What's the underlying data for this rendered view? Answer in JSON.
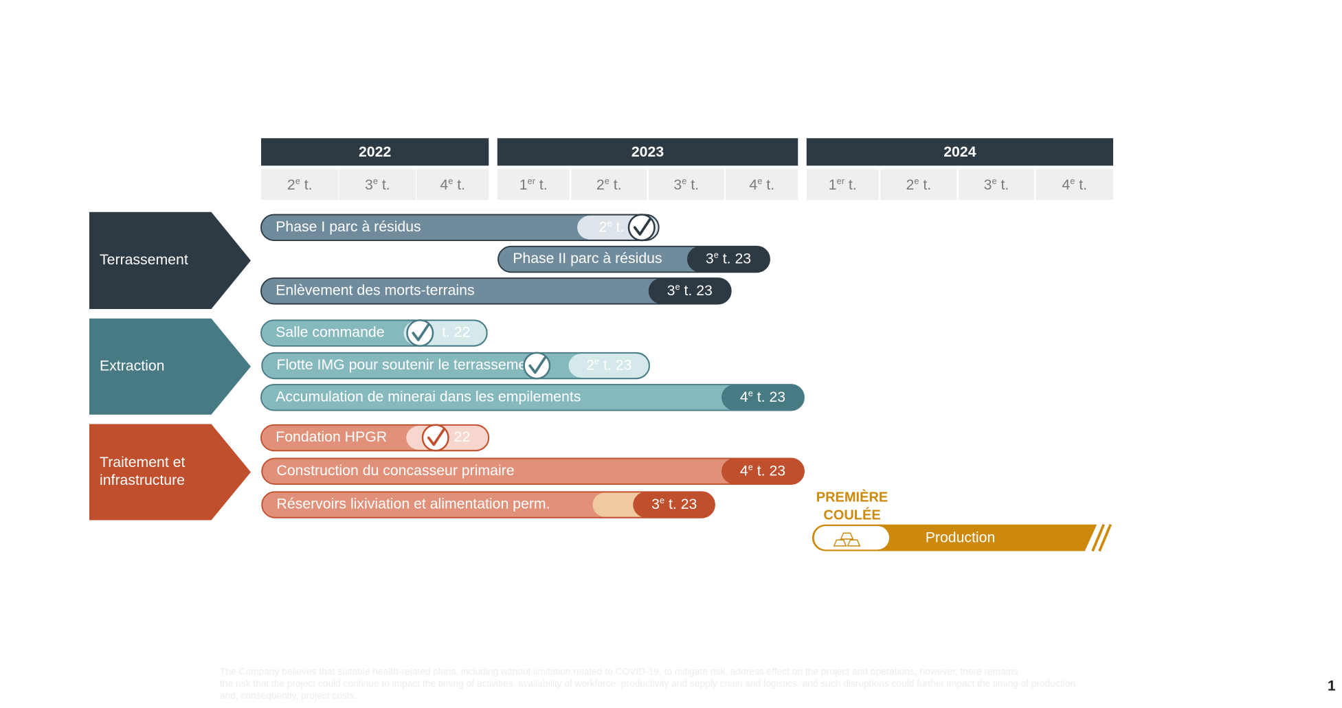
{
  "header": {
    "years": [
      {
        "label": "2022",
        "quarters": [
          {
            "n": "2",
            "sup": "e",
            "t": " t."
          },
          {
            "n": "3",
            "sup": "e",
            "t": " t."
          },
          {
            "n": "4",
            "sup": "e",
            "t": " t."
          }
        ]
      },
      {
        "label": "2023",
        "quarters": [
          {
            "n": "1",
            "sup": "er",
            "t": " t."
          },
          {
            "n": "2",
            "sup": "e",
            "t": " t."
          },
          {
            "n": "3",
            "sup": "e",
            "t": " t."
          },
          {
            "n": "4",
            "sup": "e",
            "t": " t."
          }
        ]
      },
      {
        "label": "2024",
        "quarters": [
          {
            "n": "1",
            "sup": "er",
            "t": " t."
          },
          {
            "n": "2",
            "sup": "e",
            "t": " t."
          },
          {
            "n": "3",
            "sup": "e",
            "t": " t."
          },
          {
            "n": "4",
            "sup": "e",
            "t": " t."
          }
        ]
      }
    ]
  },
  "groups": [
    {
      "label": [
        "Terrassement"
      ],
      "tasks": [
        {
          "label": "Phase I parc à résidus",
          "end": {
            "n": "2",
            "sup": "e",
            "t": " t."
          }
        },
        {
          "label": "Phase II parc à résidus",
          "end": {
            "n": "3",
            "sup": "e",
            "t": " t. 23"
          }
        },
        {
          "label": "Enlèvement des morts-terrains",
          "end": {
            "n": "3",
            "sup": "e",
            "t": " t. 23"
          }
        }
      ]
    },
    {
      "label": [
        "Extraction"
      ],
      "tasks": [
        {
          "label": "Salle commande",
          "end": "t. 22"
        },
        {
          "label": "Flotte IMG pour soutenir le terrassement",
          "end": {
            "n": "2",
            "sup": "e",
            "t": " t. 23"
          }
        },
        {
          "label": "Accumulation de minerai dans les empilements",
          "end": {
            "n": "4",
            "sup": "e",
            "t": " t. 23"
          }
        }
      ]
    },
    {
      "label": [
        "Traitement et",
        "infrastructure"
      ],
      "tasks": [
        {
          "label": "Fondation HPGR",
          "end": "22"
        },
        {
          "label": "Construction du concasseur primaire",
          "end": {
            "n": "4",
            "sup": "e",
            "t": " t. 23"
          }
        },
        {
          "label": "Réservoirs lixiviation et alimentation perm.",
          "end": {
            "n": "3",
            "sup": "e",
            "t": " t. 23"
          }
        }
      ]
    }
  ],
  "milestone": {
    "label": [
      "PREMIÈRE",
      "COULÉE"
    ],
    "bar": "Production"
  },
  "footnote": [
    "The Company believes that suitable health-related plans, including without limitation related to COVID-19, to mitigate risk, address effect on the project and operations, however, there remains",
    "the risk that the project could continue to impact the timing of activities, availability of workforce, productivity and supply chain and logistics, and such disruptions could further impact the timing of production",
    "and, consequently, project costs."
  ],
  "page_number": "1"
}
